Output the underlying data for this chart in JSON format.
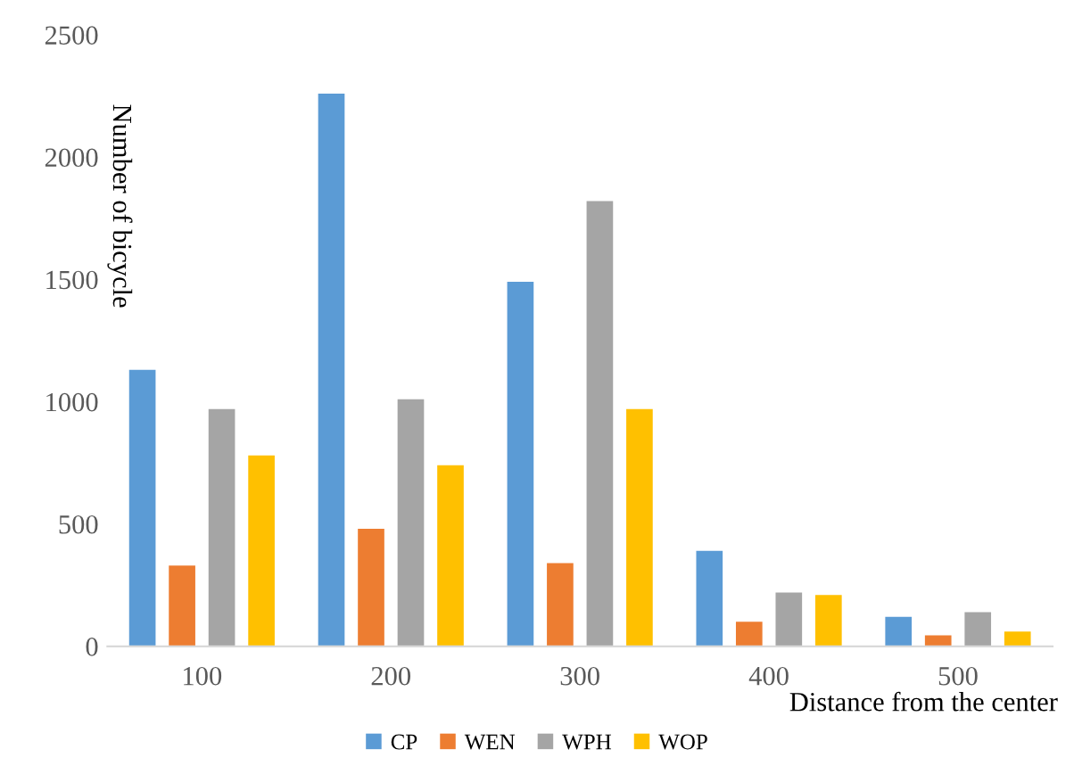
{
  "chart_data": {
    "type": "bar",
    "xlabel": "Distance from the center",
    "ylabel": "Number of bicycle",
    "categories": [
      "100",
      "200",
      "300",
      "400",
      "500"
    ],
    "series": [
      {
        "name": "CP",
        "color": "#5b9bd5",
        "values": [
          1130,
          2260,
          1490,
          390,
          120
        ]
      },
      {
        "name": "WEN",
        "color": "#ed7d31",
        "values": [
          330,
          480,
          340,
          100,
          45
        ]
      },
      {
        "name": "WPH",
        "color": "#a5a5a5",
        "values": [
          970,
          1010,
          1820,
          220,
          140
        ]
      },
      {
        "name": "WOP",
        "color": "#ffc000",
        "values": [
          780,
          740,
          970,
          210,
          60
        ]
      }
    ],
    "ylim": [
      0,
      2500
    ],
    "yticks": [
      0,
      500,
      1000,
      1500,
      2000,
      2500
    ],
    "grid": false,
    "legend": "bottom"
  }
}
